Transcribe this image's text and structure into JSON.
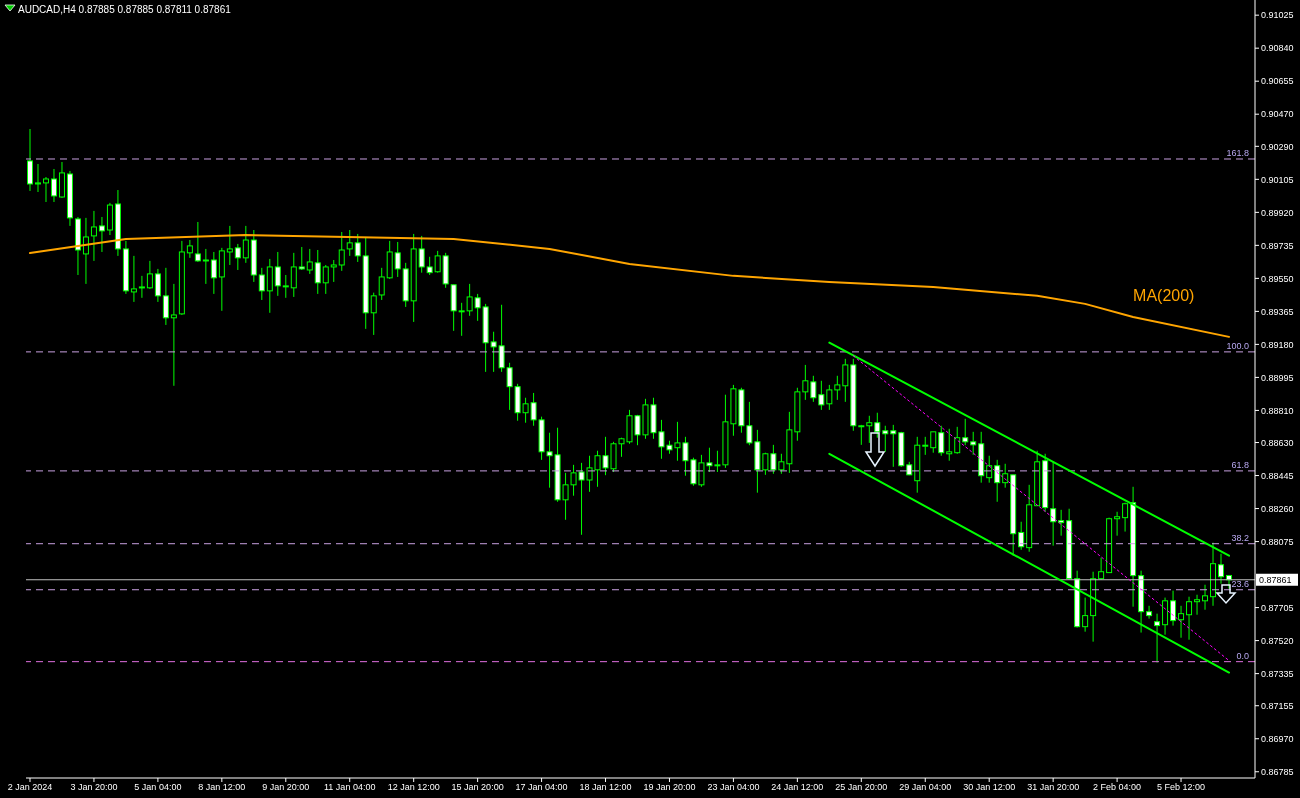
{
  "chart_data": {
    "type": "candlestick",
    "title": "AUDCAD,H4 0.87885 0.87885 0.87811 0.87861",
    "categories": [
      "2 Jan 2024",
      null,
      null,
      null,
      null,
      null,
      null,
      null,
      "3 Jan 20:00",
      null,
      null,
      null,
      null,
      null,
      null,
      null,
      "5 Jan 04:00",
      null,
      null,
      null,
      null,
      null,
      null,
      null,
      "8 Jan 12:00",
      null,
      null,
      null,
      null,
      null,
      null,
      null,
      "9 Jan 20:00",
      null,
      null,
      null,
      null,
      null,
      null,
      null,
      "11 Jan 04:00",
      null,
      null,
      null,
      null,
      null,
      null,
      null,
      "12 Jan 12:00",
      null,
      null,
      null,
      null,
      null,
      null,
      null,
      "15 Jan 20:00",
      null,
      null,
      null,
      null,
      null,
      null,
      null,
      "17 Jan 04:00",
      null,
      null,
      null,
      null,
      null,
      null,
      null,
      "18 Jan 12:00",
      null,
      null,
      null,
      null,
      null,
      null,
      null,
      "19 Jan 20:00",
      null,
      null,
      null,
      null,
      null,
      null,
      null,
      "23 Jan 04:00",
      null,
      null,
      null,
      null,
      null,
      null,
      null,
      "24 Jan 12:00",
      null,
      null,
      null,
      null,
      null,
      null,
      null,
      "25 Jan 20:00",
      null,
      null,
      null,
      null,
      null,
      null,
      null,
      "29 Jan 04:00",
      null,
      null,
      null,
      null,
      null,
      null,
      null,
      "30 Jan 12:00",
      null,
      null,
      null,
      null,
      null,
      null,
      null,
      "31 Jan 20:00",
      null,
      null,
      null,
      null,
      null,
      null,
      null,
      "2 Feb 04:00",
      null,
      null,
      null,
      null,
      null,
      null,
      null,
      "5 Feb 12:00",
      null,
      null,
      null,
      null,
      null,
      null
    ],
    "ohlc": [
      [
        0.90208,
        0.90387,
        0.9004,
        0.90079
      ],
      [
        0.90079,
        0.90191,
        0.90034,
        0.90085
      ],
      [
        0.90085,
        0.90118,
        0.89978,
        0.90107
      ],
      [
        0.90107,
        0.90163,
        0.89978,
        0.90012
      ],
      [
        0.90006,
        0.90202,
        0.90001,
        0.90141
      ],
      [
        0.90135,
        0.90152,
        0.89844,
        0.89889
      ],
      [
        0.89883,
        0.89894,
        0.89569,
        0.89709
      ],
      [
        0.89687,
        0.89889,
        0.89519,
        0.89782
      ],
      [
        0.89788,
        0.89928,
        0.89648,
        0.89838
      ],
      [
        0.89844,
        0.89894,
        0.89698,
        0.89816
      ],
      [
        0.89821,
        0.89973,
        0.89793,
        0.89961
      ],
      [
        0.89967,
        0.90045,
        0.89676,
        0.89715
      ],
      [
        0.89715,
        0.8976,
        0.89463,
        0.8948
      ],
      [
        0.89474,
        0.89676,
        0.89418,
        0.89491
      ],
      [
        0.89497,
        0.89564,
        0.89441,
        0.89502
      ],
      [
        0.89497,
        0.89648,
        0.89491,
        0.89575
      ],
      [
        0.89575,
        0.89603,
        0.89418,
        0.89452
      ],
      [
        0.89452,
        0.89609,
        0.89289,
        0.89329
      ],
      [
        0.89329,
        0.89519,
        0.88948,
        0.89345
      ],
      [
        0.89351,
        0.8976,
        0.89345,
        0.89698
      ],
      [
        0.89693,
        0.89765,
        0.89665,
        0.89732
      ],
      [
        0.89687,
        0.89866,
        0.89642,
        0.89648
      ],
      [
        0.89653,
        0.89715,
        0.89519,
        0.89648
      ],
      [
        0.89653,
        0.89698,
        0.89463,
        0.89553
      ],
      [
        0.89558,
        0.89721,
        0.89368,
        0.89704
      ],
      [
        0.89698,
        0.89844,
        0.89625,
        0.89715
      ],
      [
        0.89721,
        0.89743,
        0.89597,
        0.89665
      ],
      [
        0.89665,
        0.89844,
        0.89637,
        0.89765
      ],
      [
        0.89765,
        0.89821,
        0.8953,
        0.89569
      ],
      [
        0.89569,
        0.89609,
        0.89429,
        0.8948
      ],
      [
        0.8948,
        0.89659,
        0.89357,
        0.89614
      ],
      [
        0.89614,
        0.89698,
        0.89452,
        0.89508
      ],
      [
        0.89508,
        0.89569,
        0.89441,
        0.89508
      ],
      [
        0.89497,
        0.89693,
        0.89446,
        0.89614
      ],
      [
        0.89614,
        0.89726,
        0.89597,
        0.89603
      ],
      [
        0.89597,
        0.89715,
        0.89575,
        0.89642
      ],
      [
        0.89637,
        0.89709,
        0.89463,
        0.89525
      ],
      [
        0.89525,
        0.89625,
        0.89463,
        0.89614
      ],
      [
        0.89614,
        0.89653,
        0.8953,
        0.89625
      ],
      [
        0.89625,
        0.8981,
        0.89592,
        0.89709
      ],
      [
        0.89715,
        0.89821,
        0.89676,
        0.89749
      ],
      [
        0.89749,
        0.89799,
        0.89642,
        0.89676
      ],
      [
        0.89676,
        0.89782,
        0.89267,
        0.89357
      ],
      [
        0.89357,
        0.8947,
        0.89233,
        0.89452
      ],
      [
        0.89457,
        0.89609,
        0.89429,
        0.89558
      ],
      [
        0.89553,
        0.8976,
        0.89547,
        0.89698
      ],
      [
        0.89693,
        0.89754,
        0.89558,
        0.89603
      ],
      [
        0.89603,
        0.89637,
        0.8939,
        0.89424
      ],
      [
        0.89424,
        0.89799,
        0.89306,
        0.89715
      ],
      [
        0.89715,
        0.89788,
        0.89582,
        0.89614
      ],
      [
        0.89614,
        0.89671,
        0.89569,
        0.89582
      ],
      [
        0.89587,
        0.89704,
        0.89582,
        0.89676
      ],
      [
        0.89676,
        0.89693,
        0.89497,
        0.89519
      ],
      [
        0.89514,
        0.89514,
        0.89256,
        0.89368
      ],
      [
        0.89368,
        0.89413,
        0.89228,
        0.89368
      ],
      [
        0.89368,
        0.89519,
        0.8934,
        0.89446
      ],
      [
        0.89441,
        0.89463,
        0.89312,
        0.89385
      ],
      [
        0.8939,
        0.89407,
        0.89026,
        0.89189
      ],
      [
        0.89194,
        0.89251,
        0.89026,
        0.89166
      ],
      [
        0.89172,
        0.89402,
        0.89026,
        0.89049
      ],
      [
        0.89049,
        0.89077,
        0.88813,
        0.88943
      ],
      [
        0.88943,
        0.88959,
        0.88752,
        0.88797
      ],
      [
        0.88797,
        0.88881,
        0.88741,
        0.88847
      ],
      [
        0.88853,
        0.88908,
        0.88724,
        0.88757
      ],
      [
        0.88757,
        0.88775,
        0.88533,
        0.88578
      ],
      [
        0.88578,
        0.88685,
        0.88377,
        0.88556
      ],
      [
        0.88561,
        0.88713,
        0.88298,
        0.88309
      ],
      [
        0.88309,
        0.8846,
        0.88197,
        0.88393
      ],
      [
        0.88393,
        0.88505,
        0.88332,
        0.8846
      ],
      [
        0.88465,
        0.88516,
        0.88113,
        0.8842
      ],
      [
        0.8842,
        0.88556,
        0.88354,
        0.88488
      ],
      [
        0.88477,
        0.88584,
        0.88382,
        0.88556
      ],
      [
        0.88556,
        0.88662,
        0.88447,
        0.88488
      ],
      [
        0.88483,
        0.88634,
        0.88465,
        0.88623
      ],
      [
        0.88623,
        0.88657,
        0.8855,
        0.88651
      ],
      [
        0.88634,
        0.88813,
        0.88623,
        0.8878
      ],
      [
        0.8878,
        0.88785,
        0.88615,
        0.88673
      ],
      [
        0.88673,
        0.88875,
        0.88651,
        0.88841
      ],
      [
        0.88841,
        0.88881,
        0.88651,
        0.88685
      ],
      [
        0.8869,
        0.88757,
        0.88539,
        0.88606
      ],
      [
        0.88615,
        0.8864,
        0.88567,
        0.88589
      ],
      [
        0.88601,
        0.88746,
        0.88528,
        0.88628
      ],
      [
        0.88628,
        0.88662,
        0.88444,
        0.88528
      ],
      [
        0.88533,
        0.88545,
        0.88388,
        0.88399
      ],
      [
        0.88393,
        0.88561,
        0.88382,
        0.88516
      ],
      [
        0.88516,
        0.88601,
        0.88465,
        0.885
      ],
      [
        0.88505,
        0.88584,
        0.88465,
        0.88505
      ],
      [
        0.88505,
        0.88898,
        0.88488,
        0.88746
      ],
      [
        0.88735,
        0.88953,
        0.88668,
        0.88931
      ],
      [
        0.88925,
        0.88937,
        0.88685,
        0.88724
      ],
      [
        0.88724,
        0.88858,
        0.88615,
        0.88628
      ],
      [
        0.88634,
        0.88701,
        0.88349,
        0.88477
      ],
      [
        0.88477,
        0.88573,
        0.88449,
        0.88567
      ],
      [
        0.88567,
        0.88617,
        0.88455,
        0.88477
      ],
      [
        0.88477,
        0.88567,
        0.88455,
        0.88522
      ],
      [
        0.88511,
        0.88802,
        0.8846,
        0.88701
      ],
      [
        0.8869,
        0.88937,
        0.8864,
        0.88914
      ],
      [
        0.88914,
        0.89065,
        0.88869,
        0.88976
      ],
      [
        0.8897,
        0.89004,
        0.88858,
        0.88881
      ],
      [
        0.88898,
        0.88976,
        0.88813,
        0.88841
      ],
      [
        0.88847,
        0.88953,
        0.88813,
        0.88925
      ],
      [
        0.88925,
        0.89004,
        0.88869,
        0.88953
      ],
      [
        0.88948,
        0.89099,
        0.88858,
        0.89065
      ],
      [
        0.89065,
        0.89099,
        0.88696,
        0.88724
      ],
      [
        0.88724,
        0.88729,
        0.88617,
        0.88724
      ],
      [
        0.88724,
        0.8878,
        0.88628,
        0.88741
      ],
      [
        0.88741,
        0.88797,
        0.88657,
        0.8869
      ],
      [
        0.88696,
        0.88724,
        0.88578,
        0.88679
      ],
      [
        0.88696,
        0.88729,
        0.88494,
        0.88679
      ],
      [
        0.88685,
        0.8869,
        0.88494,
        0.885
      ],
      [
        0.88505,
        0.88522,
        0.88447,
        0.88449
      ],
      [
        0.88416,
        0.88662,
        0.88349,
        0.88615
      ],
      [
        0.88615,
        0.88662,
        0.88561,
        0.88615
      ],
      [
        0.88601,
        0.8869,
        0.88573,
        0.8869
      ],
      [
        0.88685,
        0.88724,
        0.88556,
        0.88573
      ],
      [
        0.88567,
        0.88707,
        0.88528,
        0.88578
      ],
      [
        0.88573,
        0.88718,
        0.88567,
        0.88657
      ],
      [
        0.88657,
        0.88763,
        0.88615,
        0.88634
      ],
      [
        0.88634,
        0.8869,
        0.88561,
        0.88617
      ],
      [
        0.88623,
        0.8869,
        0.88405,
        0.88444
      ],
      [
        0.88433,
        0.88556,
        0.88405,
        0.885
      ],
      [
        0.885,
        0.88533,
        0.88298,
        0.88405
      ],
      [
        0.88405,
        0.88511,
        0.88377,
        0.88455
      ],
      [
        0.88449,
        0.88449,
        0.87996,
        0.88119
      ],
      [
        0.88126,
        0.88186,
        0.88029,
        0.88046
      ],
      [
        0.88041,
        0.88393,
        0.88018,
        0.88281
      ],
      [
        0.88276,
        0.88584,
        0.88276,
        0.88522
      ],
      [
        0.88528,
        0.88567,
        0.88242,
        0.88265
      ],
      [
        0.88259,
        0.88522,
        0.88052,
        0.88186
      ],
      [
        0.88192,
        0.88253,
        0.88108,
        0.88181
      ],
      [
        0.88192,
        0.88259,
        0.87861,
        0.87867
      ],
      [
        0.87867,
        0.87912,
        0.87593,
        0.87598
      ],
      [
        0.87598,
        0.87761,
        0.8757,
        0.8766
      ],
      [
        0.8766,
        0.87906,
        0.87514,
        0.87867
      ],
      [
        0.87867,
        0.87985,
        0.87861,
        0.87906
      ],
      [
        0.87901,
        0.88209,
        0.87901,
        0.88203
      ],
      [
        0.88203,
        0.88242,
        0.88108,
        0.88214
      ],
      [
        0.88209,
        0.88293,
        0.88131,
        0.88287
      ],
      [
        0.88293,
        0.88382,
        0.8771,
        0.87884
      ],
      [
        0.87884,
        0.87912,
        0.87565,
        0.87682
      ],
      [
        0.87682,
        0.87715,
        0.87643,
        0.8766
      ],
      [
        0.87626,
        0.87671,
        0.87397,
        0.87604
      ],
      [
        0.87609,
        0.87761,
        0.87553,
        0.87743
      ],
      [
        0.87743,
        0.878,
        0.87604,
        0.87632
      ],
      [
        0.87637,
        0.87715,
        0.87536,
        0.87671
      ],
      [
        0.87665,
        0.87766,
        0.87525,
        0.87738
      ],
      [
        0.87738,
        0.87777,
        0.87665,
        0.87749
      ],
      [
        0.87743,
        0.87833,
        0.87693,
        0.87771
      ],
      [
        0.87766,
        0.88069,
        0.87715,
        0.87951
      ],
      [
        0.87945,
        0.88007,
        0.87839,
        0.87878
      ],
      [
        0.87885,
        0.87885,
        0.87811,
        0.87861
      ]
    ],
    "series": [
      {
        "name": "MA(200)",
        "type": "line",
        "color": "#ffa500",
        "values": [
          0.89692,
          null,
          null,
          null,
          null,
          null,
          null,
          null,
          null,
          null,
          null,
          null,
          0.89771,
          null,
          null,
          null,
          null,
          null,
          null,
          null,
          null,
          null,
          null,
          null,
          null,
          null,
          null,
          0.89793,
          null,
          null,
          null,
          null,
          null,
          null,
          null,
          null,
          null,
          null,
          null,
          null,
          null,
          null,
          null,
          null,
          null,
          null,
          null,
          null,
          null,
          null,
          null,
          null,
          null,
          0.89771,
          null,
          null,
          null,
          null,
          null,
          null,
          null,
          null,
          null,
          null,
          null,
          0.89715,
          null,
          null,
          null,
          null,
          null,
          null,
          null,
          null,
          null,
          0.89631,
          null,
          null,
          null,
          null,
          null,
          null,
          null,
          null,
          null,
          null,
          null,
          null,
          0.89564,
          null,
          null,
          null,
          null,
          null,
          null,
          null,
          null,
          null,
          null,
          null,
          0.8953,
          null,
          null,
          null,
          null,
          null,
          null,
          null,
          null,
          null,
          null,
          null,
          null,
          0.89502,
          null,
          null,
          null,
          null,
          null,
          null,
          null,
          null,
          null,
          null,
          null,
          null,
          0.89452,
          null,
          null,
          null,
          null,
          null,
          0.89407,
          null,
          null,
          null,
          null,
          null,
          0.89334,
          null,
          null,
          null,
          null,
          null,
          null,
          null,
          null,
          null,
          null,
          null,
          0.89222
        ]
      },
      {
        "type": "line",
        "color": "#00ff00",
        "values": [
          null,
          null,
          null,
          null,
          null,
          null,
          null,
          null,
          null,
          null,
          null,
          null,
          null,
          null,
          null,
          null,
          null,
          null,
          null,
          null,
          null,
          null,
          null,
          null,
          null,
          null,
          null,
          null,
          null,
          null,
          null,
          null,
          null,
          null,
          null,
          null,
          null,
          null,
          null,
          null,
          null,
          null,
          null,
          null,
          null,
          null,
          null,
          null,
          null,
          null,
          null,
          null,
          null,
          null,
          null,
          null,
          null,
          null,
          null,
          null,
          null,
          null,
          null,
          null,
          null,
          null,
          null,
          null,
          null,
          null,
          null,
          null,
          null,
          null,
          null,
          null,
          null,
          null,
          null,
          null,
          null,
          null,
          null,
          null,
          null,
          null,
          null,
          null,
          null,
          null,
          null,
          null,
          null,
          null,
          null,
          null,
          null,
          null,
          null,
          null,
          0.8919,
          null,
          null,
          null,
          null,
          null,
          null,
          null,
          null,
          null,
          null,
          null,
          null,
          null,
          null,
          null,
          null,
          null,
          null,
          null,
          null,
          null,
          null,
          null,
          null,
          null,
          null,
          null,
          null,
          null,
          null,
          null,
          null,
          null,
          null,
          null,
          null,
          null,
          null,
          null,
          null,
          null,
          null,
          null,
          null,
          null,
          null,
          null,
          null,
          null,
          0.87996
        ]
      },
      {
        "type": "line",
        "color": "#00ff00",
        "values": [
          null,
          null,
          null,
          null,
          null,
          null,
          null,
          null,
          null,
          null,
          null,
          null,
          null,
          null,
          null,
          null,
          null,
          null,
          null,
          null,
          null,
          null,
          null,
          null,
          null,
          null,
          null,
          null,
          null,
          null,
          null,
          null,
          null,
          null,
          null,
          null,
          null,
          null,
          null,
          null,
          null,
          null,
          null,
          null,
          null,
          null,
          null,
          null,
          null,
          null,
          null,
          null,
          null,
          null,
          null,
          null,
          null,
          null,
          null,
          null,
          null,
          null,
          null,
          null,
          null,
          null,
          null,
          null,
          null,
          null,
          null,
          null,
          null,
          null,
          null,
          null,
          null,
          null,
          null,
          null,
          null,
          null,
          null,
          null,
          null,
          null,
          null,
          null,
          null,
          null,
          null,
          null,
          null,
          null,
          null,
          null,
          null,
          null,
          null,
          null,
          0.88567,
          null,
          null,
          null,
          null,
          null,
          null,
          null,
          null,
          null,
          null,
          null,
          null,
          null,
          null,
          null,
          null,
          null,
          null,
          null,
          null,
          null,
          null,
          null,
          null,
          null,
          null,
          null,
          null,
          null,
          null,
          null,
          null,
          null,
          null,
          null,
          null,
          null,
          null,
          null,
          null,
          null,
          null,
          null,
          null,
          null,
          null,
          null,
          null,
          null,
          0.87341
        ]
      },
      {
        "type": "line",
        "color": "#ff00ff",
        "line_style": "dotted",
        "values": [
          null,
          null,
          null,
          null,
          null,
          null,
          null,
          null,
          null,
          null,
          null,
          null,
          null,
          null,
          null,
          null,
          null,
          null,
          null,
          null,
          null,
          null,
          null,
          null,
          null,
          null,
          null,
          null,
          null,
          null,
          null,
          null,
          null,
          null,
          null,
          null,
          null,
          null,
          null,
          null,
          null,
          null,
          null,
          null,
          null,
          null,
          null,
          null,
          null,
          null,
          null,
          null,
          null,
          null,
          null,
          null,
          null,
          null,
          null,
          null,
          null,
          null,
          null,
          null,
          null,
          null,
          null,
          null,
          null,
          null,
          null,
          null,
          null,
          null,
          null,
          null,
          null,
          null,
          null,
          null,
          null,
          null,
          null,
          null,
          null,
          null,
          null,
          null,
          null,
          null,
          null,
          null,
          null,
          null,
          null,
          null,
          null,
          null,
          null,
          null,
          null,
          null,
          null,
          0.89116,
          null,
          null,
          null,
          null,
          null,
          null,
          null,
          null,
          null,
          null,
          null,
          null,
          null,
          null,
          null,
          null,
          null,
          null,
          null,
          null,
          null,
          null,
          null,
          null,
          null,
          null,
          null,
          null,
          null,
          null,
          null,
          null,
          null,
          null,
          null,
          null,
          null,
          null,
          null,
          null,
          null,
          null,
          null,
          null,
          null,
          null,
          0.87408
        ]
      }
    ],
    "ylim": [
      0.8675,
      0.9111
    ],
    "yticks": [
      {
        "value": 0.91025,
        "label": "0.91025"
      },
      {
        "value": 0.9084,
        "label": "0.90840"
      },
      {
        "value": 0.90655,
        "label": "0.90655"
      },
      {
        "value": 0.9047,
        "label": "0.90470"
      },
      {
        "value": 0.9029,
        "label": "0.90290"
      },
      {
        "value": 0.90105,
        "label": "0.90105"
      },
      {
        "value": 0.8992,
        "label": "0.89920"
      },
      {
        "value": 0.89735,
        "label": "0.89735"
      },
      {
        "value": 0.8955,
        "label": "0.89550"
      },
      {
        "value": 0.89365,
        "label": "0.89365"
      },
      {
        "value": 0.8918,
        "label": "0.89180"
      },
      {
        "value": 0.88995,
        "label": "0.88995"
      },
      {
        "value": 0.8881,
        "label": "0.88810"
      },
      {
        "value": 0.8863,
        "label": "0.88630"
      },
      {
        "value": 0.88445,
        "label": "0.88445"
      },
      {
        "value": 0.8826,
        "label": "0.88260"
      },
      {
        "value": 0.88075,
        "label": "0.88075"
      },
      {
        "value": 0.87705,
        "label": "0.87705"
      },
      {
        "value": 0.8752,
        "label": "0.87520"
      },
      {
        "value": 0.87335,
        "label": "0.87335"
      },
      {
        "value": 0.87155,
        "label": "0.87155"
      },
      {
        "value": 0.8697,
        "label": "0.86970"
      },
      {
        "value": 0.86785,
        "label": "0.86785"
      }
    ],
    "ref_lines": [
      {
        "axis": "y",
        "value": 0.90219,
        "color": "#c8a0e0",
        "line_style": "dashed"
      },
      {
        "axis": "y",
        "value": 0.89138,
        "color": "#c8a0e0",
        "line_style": "dashed"
      },
      {
        "axis": "y",
        "value": 0.88471,
        "color": "#c8a0e0",
        "line_style": "dashed"
      },
      {
        "axis": "y",
        "value": 0.88063,
        "color": "#c8a0e0",
        "line_style": "dashed"
      },
      {
        "axis": "y",
        "value": 0.87805,
        "color": "#c8a0e0",
        "line_style": "dashed"
      },
      {
        "axis": "y",
        "value": 0.87402,
        "color": "#e070e0",
        "line_style": "dashed"
      },
      {
        "axis": "y",
        "value": 0.87861,
        "label": "0.87861",
        "color": "#c0c0c0",
        "line_style": "solid"
      }
    ],
    "annotations": [
      {
        "text": "161.8",
        "y": 0.90219
      },
      {
        "text": "100.0",
        "y": 0.89138
      },
      {
        "text": "61.8",
        "y": 0.88471
      },
      {
        "text": "38.2",
        "y": 0.88063
      },
      {
        "text": "23.6",
        "y": 0.87805
      },
      {
        "text": "0.0",
        "y": 0.87402
      }
    ],
    "grid": false,
    "legend": false,
    "marker": "none",
    "line_style": "solid"
  }
}
